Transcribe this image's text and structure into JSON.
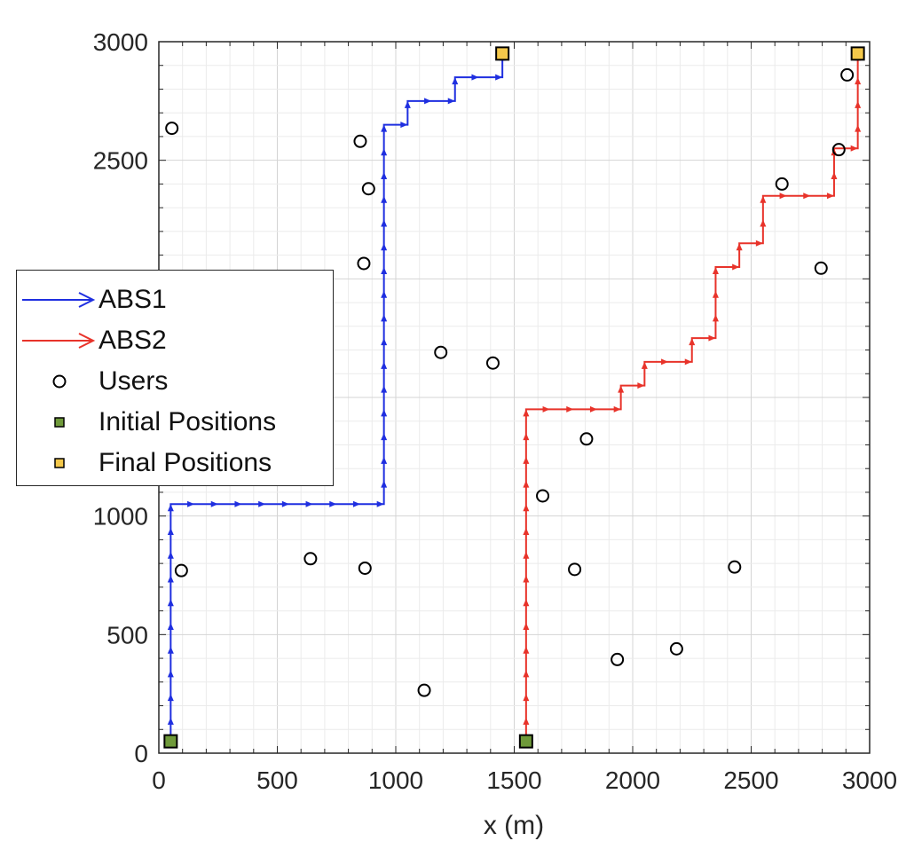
{
  "chart_data": {
    "type": "line",
    "xlabel": "x (m)",
    "ylabel": "",
    "xlim": [
      0,
      3000
    ],
    "ylim": [
      0,
      3000
    ],
    "xticks": [
      "0",
      "500",
      "1000",
      "1500",
      "2000",
      "2500",
      "3000"
    ],
    "yticks": [
      "0",
      "500",
      "1000",
      "1500",
      "2000",
      "2500",
      "3000"
    ],
    "grid": true,
    "minor_grid": true,
    "legend_position": "left",
    "series": [
      {
        "name": "ABS1",
        "color": "#1f2fe0",
        "points": [
          [
            50,
            50
          ],
          [
            50,
            1050
          ],
          [
            950,
            1050
          ],
          [
            950,
            2650
          ],
          [
            1050,
            2650
          ],
          [
            1050,
            2750
          ],
          [
            1250,
            2750
          ],
          [
            1250,
            2850
          ],
          [
            1450,
            2850
          ],
          [
            1450,
            2950
          ]
        ]
      },
      {
        "name": "ABS2",
        "color": "#e8332a",
        "points": [
          [
            1550,
            50
          ],
          [
            1550,
            1450
          ],
          [
            1950,
            1450
          ],
          [
            1950,
            1550
          ],
          [
            2050,
            1550
          ],
          [
            2050,
            1650
          ],
          [
            2250,
            1650
          ],
          [
            2250,
            1750
          ],
          [
            2350,
            1750
          ],
          [
            2350,
            2050
          ],
          [
            2450,
            2050
          ],
          [
            2450,
            2150
          ],
          [
            2550,
            2150
          ],
          [
            2550,
            2350
          ],
          [
            2850,
            2350
          ],
          [
            2850,
            2550
          ],
          [
            2950,
            2550
          ],
          [
            2950,
            2950
          ]
        ]
      }
    ],
    "users": [
      [
        55,
        2635
      ],
      [
        95,
        770
      ],
      [
        640,
        820
      ],
      [
        850,
        2580
      ],
      [
        865,
        2065
      ],
      [
        870,
        780
      ],
      [
        885,
        2380
      ],
      [
        1120,
        265
      ],
      [
        1190,
        1690
      ],
      [
        1410,
        1645
      ],
      [
        1620,
        1085
      ],
      [
        1755,
        775
      ],
      [
        1805,
        1325
      ],
      [
        1935,
        395
      ],
      [
        2185,
        440
      ],
      [
        2430,
        785
      ],
      [
        2630,
        2400
      ],
      [
        2795,
        2045
      ],
      [
        2870,
        2545
      ],
      [
        2905,
        2860
      ]
    ],
    "initial_positions": [
      [
        50,
        50
      ],
      [
        1550,
        50
      ]
    ],
    "final_positions": [
      [
        1450,
        2950
      ],
      [
        2950,
        2950
      ]
    ],
    "legend": [
      {
        "label": "ABS1",
        "kind": "arrow",
        "color": "#1f2fe0"
      },
      {
        "label": "ABS2",
        "kind": "arrow",
        "color": "#e8332a"
      },
      {
        "label": "Users",
        "kind": "circle",
        "color": "#000000"
      },
      {
        "label": "Initial Positions",
        "kind": "square",
        "color": "#6f9a3a"
      },
      {
        "label": "Final Positions",
        "kind": "square",
        "color": "#f4c84a"
      }
    ]
  }
}
